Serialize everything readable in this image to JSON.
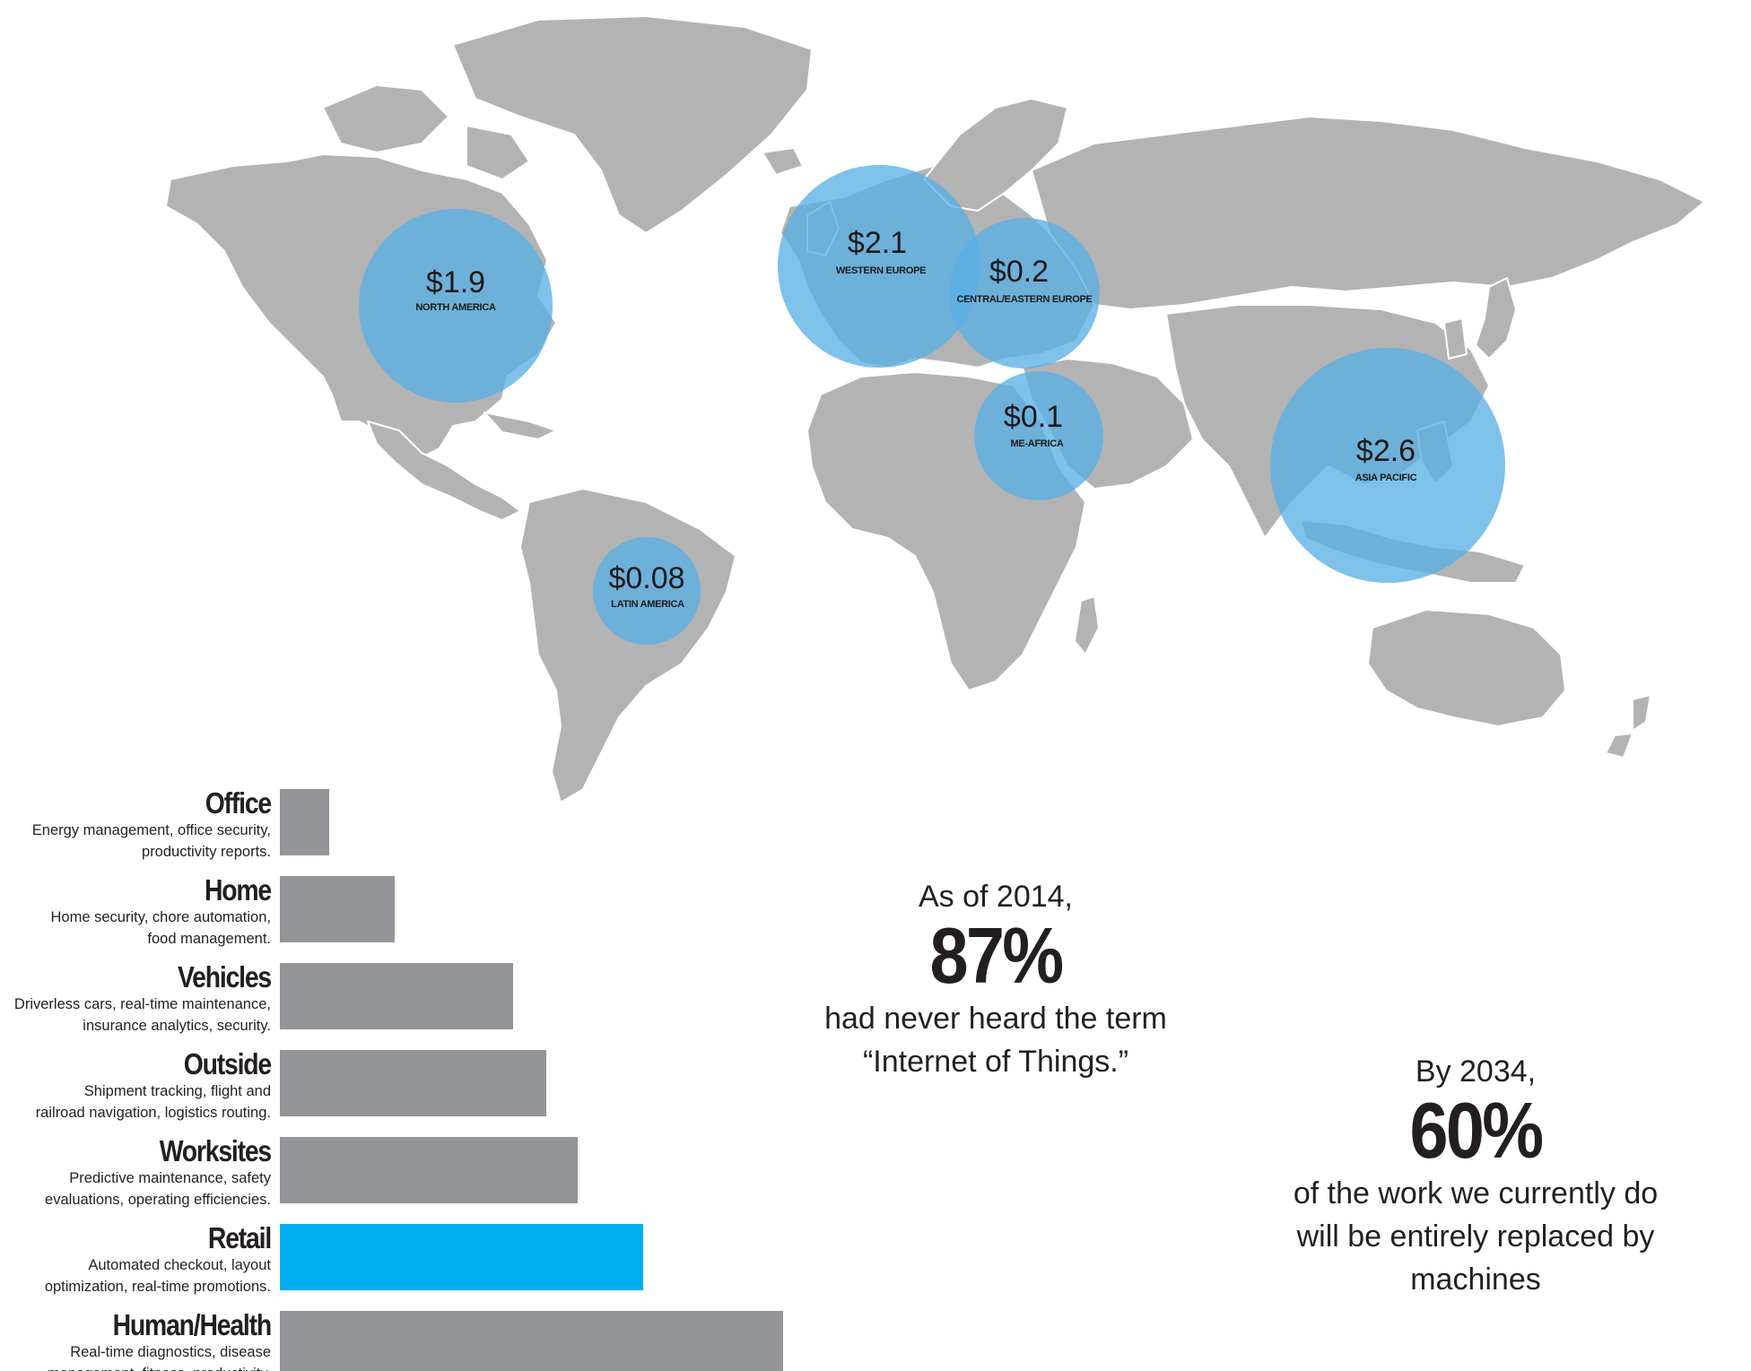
{
  "map": {
    "land_color": "#b3b3b3",
    "bubble_color": "#5aafe6",
    "regions": [
      {
        "value": "$1.9",
        "label": "NORTH AMERICA"
      },
      {
        "value": "$2.1",
        "label": "WESTERN EUROPE"
      },
      {
        "value": "$0.2",
        "label": "CENTRAL/EASTERN EUROPE"
      },
      {
        "value": "$0.1",
        "label": "ME-AFRICA"
      },
      {
        "value": "$2.6",
        "label": "ASIA PACIFIC"
      },
      {
        "value": "$0.08",
        "label": "LATIN AMERICA"
      }
    ]
  },
  "chart_data": {
    "type": "bar",
    "orientation": "horizontal",
    "bar_color": "#939598",
    "highlight_color": "#00aeef",
    "categories": [
      "Office",
      "Home",
      "Vehicles",
      "Outside",
      "Worksites",
      "Retail",
      "Human/Health"
    ],
    "descriptions": [
      [
        "Energy management, office security,",
        "productivity reports."
      ],
      [
        "Home security, chore automation,",
        "food management."
      ],
      [
        "Driverless cars, real-time maintenance,",
        "insurance analytics, security."
      ],
      [
        "Shipment tracking, flight and",
        "railroad navigation, logistics routing."
      ],
      [
        "Predictive maintenance, safety",
        "evaluations, operating efficiencies."
      ],
      [
        "Automated checkout, layout",
        "optimization, real-time promotions."
      ],
      [
        "Real-time diagnostics, disease",
        "management, fitness, productivity."
      ]
    ],
    "values": [
      0.36,
      0.84,
      1.7,
      1.94,
      2.17,
      2.65,
      3.67
    ],
    "highlighted": [
      "Retail"
    ],
    "axis": "none",
    "grid": false,
    "legend": "none"
  },
  "stats": {
    "s2014": {
      "lead": "As of 2014,",
      "big": "87%",
      "line1": "had never heard the term",
      "line2": "“Internet of Things.”"
    },
    "s2034": {
      "lead": "By 2034,",
      "big": "60%",
      "line1": "of the work we currently do",
      "line2": "will be entirely replaced by",
      "line3": "machines"
    }
  }
}
